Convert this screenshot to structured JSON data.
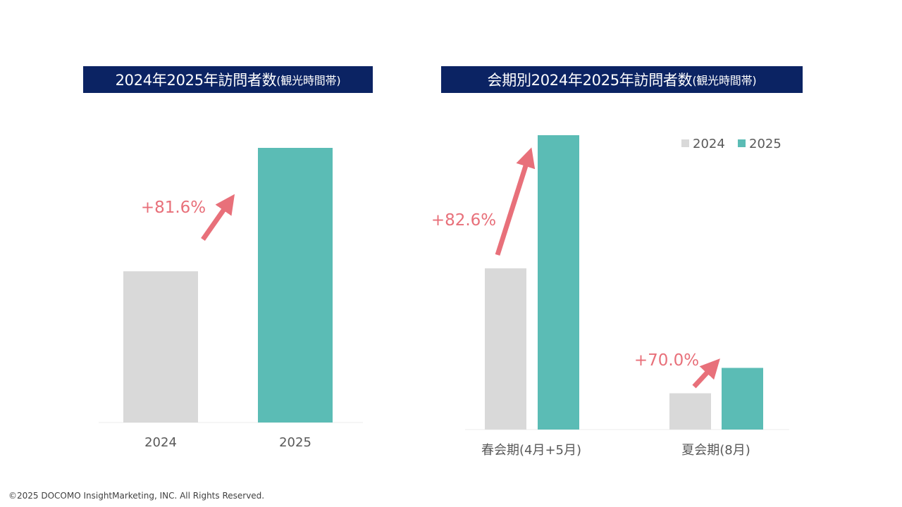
{
  "colors": {
    "year_2024": "#d9d9d9",
    "year_2025": "#5bbcb5",
    "title_bg": "#0b2363",
    "arrow": "#e8707a"
  },
  "titles": {
    "left_main": "2024年2025年訪問者数",
    "left_sub": "(観光時間帯)",
    "right_main": "会期別2024年2025年訪問者数",
    "right_sub": "(観光時間帯)"
  },
  "chart_data": [
    {
      "type": "bar",
      "title": "2024年2025年訪問者数(観光時間帯)",
      "categories": [
        "2024",
        "2025"
      ],
      "values": [
        100,
        181.6
      ],
      "value_unit": "index (2024 = 100)",
      "annotations": [
        {
          "text": "+81.6%"
        }
      ],
      "ylim": [
        0,
        190
      ]
    },
    {
      "type": "bar",
      "title": "会期別2024年2025年訪問者数(観光時間帯)",
      "categories": [
        "春会期(4月+5月)",
        "夏会期(8月)"
      ],
      "series": [
        {
          "name": "2024",
          "values": [
            100,
            22.5
          ]
        },
        {
          "name": "2025",
          "values": [
            182.6,
            38.25
          ]
        }
      ],
      "value_unit": "index (2024 spring = 100)",
      "annotations": [
        {
          "text": "+82.6%"
        },
        {
          "text": "+70.0%"
        }
      ],
      "legend": {
        "position": "top-right",
        "entries": [
          "2024",
          "2025"
        ]
      },
      "ylim": [
        0,
        190
      ]
    }
  ],
  "footer": {
    "copyright": "©2025 DOCOMO InsightMarketing, INC. All Rights Reserved."
  }
}
